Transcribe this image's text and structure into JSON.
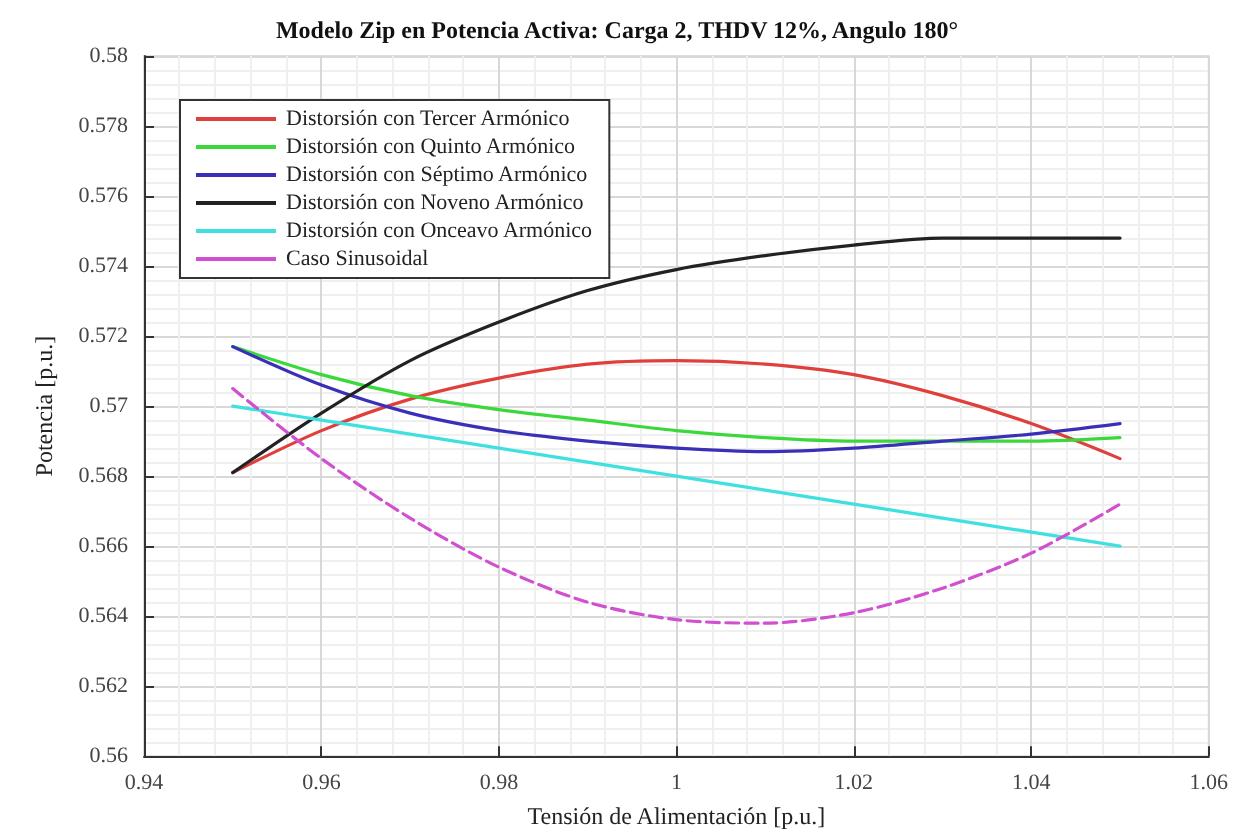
{
  "chart_data": {
    "type": "line",
    "title": "Modelo Zip en Potencia Activa: Carga 2, THDV 12%, Angulo 180°",
    "xlabel": "Tensión de Alimentación [p.u.]",
    "ylabel": "Potencia [p.u.]",
    "x": [
      0.95,
      0.96,
      0.97,
      0.98,
      0.99,
      1.0,
      1.01,
      1.02,
      1.03,
      1.04,
      1.05
    ],
    "series": [
      {
        "name": "Distorsión con Tercer Armónico",
        "color": "#e0403c",
        "values": [
          0.5681,
          0.5693,
          0.5702,
          0.5708,
          0.5712,
          0.5713,
          0.5712,
          0.5709,
          0.5703,
          0.5695,
          0.5685
        ]
      },
      {
        "name": "Distorsión con Quinto Armónico",
        "color": "#3ad83a",
        "values": [
          0.5717,
          0.5709,
          0.5703,
          0.5699,
          0.5696,
          0.5693,
          0.5691,
          0.569,
          0.569,
          0.569,
          0.5691
        ]
      },
      {
        "name": "Distorsión con Séptimo Armónico",
        "color": "#3a30b8",
        "values": [
          0.5717,
          0.5706,
          0.5698,
          0.5693,
          0.569,
          0.5688,
          0.5687,
          0.5688,
          0.569,
          0.5692,
          0.5695
        ]
      },
      {
        "name": "Distorsión con Noveno Armónico",
        "color": "#222222",
        "values": [
          0.5681,
          0.5698,
          0.5713,
          0.5724,
          0.5733,
          0.5739,
          0.5743,
          0.5746,
          0.5748,
          0.5748,
          0.5748
        ]
      },
      {
        "name": "Distorsión con Onceavo Armónico",
        "color": "#40e0e0",
        "values": [
          0.57,
          0.5696,
          0.5692,
          0.5688,
          0.5684,
          0.568,
          0.5676,
          0.5672,
          0.5668,
          0.5664,
          0.566
        ]
      },
      {
        "name": "Caso Sinusoidal",
        "color": "#d050d0",
        "line_style": "dashed",
        "values": [
          0.5705,
          0.5685,
          0.5668,
          0.5654,
          0.5644,
          0.5639,
          0.5638,
          0.5641,
          0.5648,
          0.5658,
          0.5672
        ]
      }
    ],
    "xlim": [
      0.94,
      1.06
    ],
    "xticks": [
      0.94,
      0.96,
      0.98,
      1,
      1.02,
      1.04,
      1.06
    ],
    "ylim": [
      0.56,
      0.58
    ],
    "yticks": [
      0.56,
      0.562,
      0.564,
      0.566,
      0.568,
      0.57,
      0.572,
      0.574,
      0.576,
      0.578,
      0.58
    ],
    "grid": true,
    "legend": "top left",
    "marker": "none",
    "line_style": "solid"
  }
}
